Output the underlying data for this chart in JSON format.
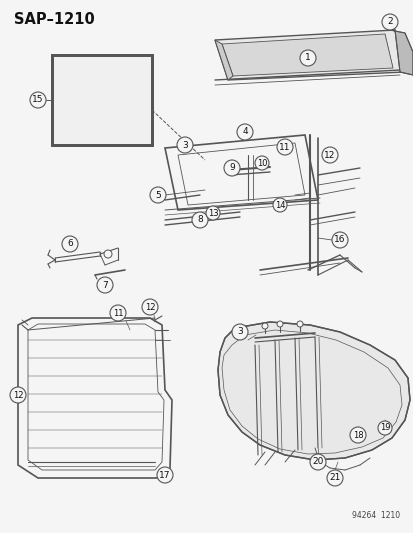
{
  "title": "SAP–1210",
  "footer": "94264  1210",
  "bg_color": "#f5f5f5",
  "line_color": "#555555",
  "text_color": "#111111",
  "title_fontsize": 10.5,
  "label_fontsize": 6.5,
  "fig_w": 4.14,
  "fig_h": 5.33,
  "dpi": 100
}
